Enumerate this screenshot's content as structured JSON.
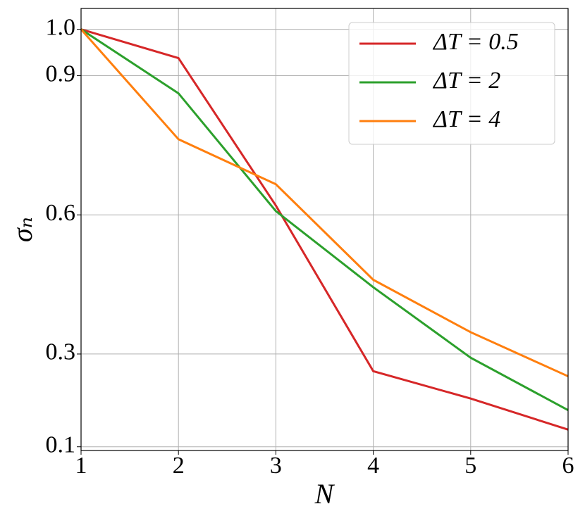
{
  "chart_data": {
    "type": "line",
    "x_label": "N",
    "y_label": "σₙ",
    "x": [
      1,
      2,
      3,
      4,
      5,
      6
    ],
    "series": [
      {
        "name": "ΔT = 0.5",
        "color": "#d62728",
        "values": [
          1.0,
          0.938,
          0.62,
          0.263,
          0.204,
          0.137
        ]
      },
      {
        "name": "ΔT = 2",
        "color": "#2ca02c",
        "values": [
          1.0,
          0.862,
          0.608,
          0.444,
          0.292,
          0.179
        ]
      },
      {
        "name": "ΔT = 4",
        "color": "#ff7f0e",
        "values": [
          1.0,
          0.763,
          0.666,
          0.46,
          0.347,
          0.252
        ]
      }
    ],
    "xlim": [
      1,
      6
    ],
    "xticks": [
      1,
      2,
      3,
      4,
      5,
      6
    ],
    "ylim": [
      0.092,
      1.045
    ],
    "yticks": [
      0.1,
      0.3,
      0.6,
      0.9,
      {
        "value": 1,
        "label": "1.0"
      }
    ],
    "grid": true,
    "legend": "upper right"
  }
}
